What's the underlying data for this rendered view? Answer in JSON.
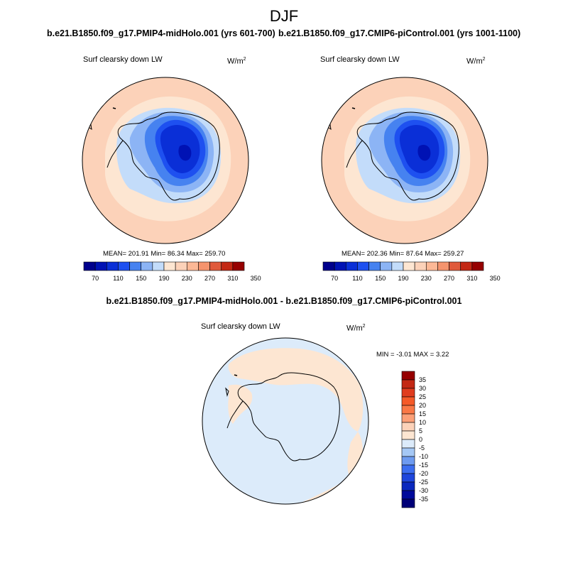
{
  "figure": {
    "season": "DJF",
    "diff_title": "b.e21.B1850.f09_g17.PMIP4-midHolo.001 - b.e21.B1850.f09_g17.CMIP6-piControl.001"
  },
  "panels": [
    {
      "title": "b.e21.B1850.f09_g17.PMIP4-midHolo.001 (yrs 601-700)",
      "variable": "Surf clearsky down LW",
      "units_base": "W/m",
      "units_exp": "2",
      "stats": "MEAN= 201.91   Min=  86.34   Max= 259.70"
    },
    {
      "title": "b.e21.B1850.f09_g17.CMIP6-piControl.001 (yrs 1001-1100)",
      "variable": "Surf clearsky down LW",
      "units_base": "W/m",
      "units_exp": "2",
      "stats": "MEAN= 202.36   Min=  87.64   Max= 259.27"
    },
    {
      "variable": "Surf clearsky down LW",
      "units_base": "W/m",
      "units_exp": "2",
      "stats": "MIN =  -3.01 MAX =   3.22"
    }
  ],
  "colorbar_main": {
    "colors": [
      "#00008c",
      "#0012b4",
      "#0a2fd7",
      "#1e50f0",
      "#4682f0",
      "#8cb4f5",
      "#c3dcfa",
      "#fde6d2",
      "#fcd2b9",
      "#fcb896",
      "#f5946e",
      "#e05a3c",
      "#c32814",
      "#960000"
    ],
    "tick_labels": [
      "70",
      "110",
      "150",
      "190",
      "230",
      "270",
      "310",
      "350"
    ]
  },
  "colorbar_diff": {
    "colors": [
      "#960000",
      "#c32814",
      "#e03c1e",
      "#f55a28",
      "#fa7846",
      "#fca078",
      "#fcd2b9",
      "#fde6d2",
      "#dcebfa",
      "#a5c8f5",
      "#6e9bf0",
      "#3c6ef0",
      "#1e46dc",
      "#0a28be",
      "#000a9b",
      "#000078"
    ],
    "tick_labels": [
      "35",
      "30",
      "25",
      "20",
      "15",
      "10",
      "5",
      "0",
      "-5",
      "-10",
      "-15",
      "-20",
      "-25",
      "-30",
      "-35"
    ]
  }
}
